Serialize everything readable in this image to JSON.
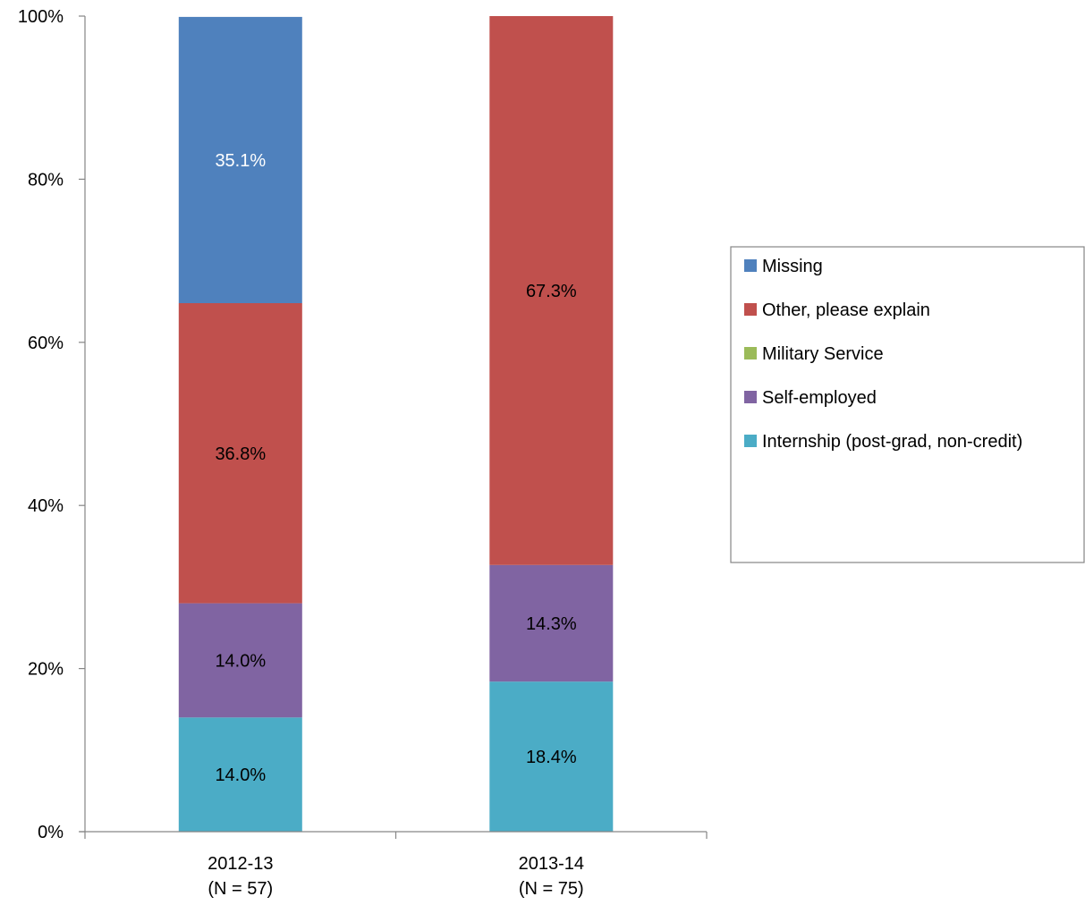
{
  "chart_data": {
    "type": "bar",
    "stacked": true,
    "percent_stacked": true,
    "categories": [
      "2012-13",
      "2013-14"
    ],
    "category_sublabels": [
      "(N = 57)",
      "(N = 75)"
    ],
    "ylim": [
      0,
      100
    ],
    "yticks": [
      0,
      20,
      40,
      60,
      80,
      100
    ],
    "ytick_labels": [
      "0%",
      "20%",
      "40%",
      "60%",
      "80%",
      "100%"
    ],
    "grid": false,
    "legend_position": "right",
    "series": [
      {
        "name": "Internship (post-grad, non-credit)",
        "color": "#4bacc6",
        "values": [
          14.0,
          18.4
        ],
        "labels": [
          "14.0%",
          "18.4%"
        ],
        "label_color": "#000000"
      },
      {
        "name": "Self-employed",
        "color": "#8064a2",
        "values": [
          14.0,
          14.3
        ],
        "labels": [
          "14.0%",
          "14.3%"
        ],
        "label_color": "#000000"
      },
      {
        "name": "Military Service",
        "color": "#9bbb59",
        "values": [
          0,
          0
        ],
        "labels": [
          "",
          ""
        ],
        "label_color": "#000000"
      },
      {
        "name": "Other, please explain",
        "color": "#c0504d",
        "values": [
          36.8,
          67.3
        ],
        "labels": [
          "36.8%",
          "67.3%"
        ],
        "label_color": "#000000"
      },
      {
        "name": "Missing",
        "color": "#4f81bd",
        "values": [
          35.1,
          0
        ],
        "labels": [
          "35.1%",
          ""
        ],
        "label_color": "#ffffff"
      }
    ],
    "legend_order": [
      "Missing",
      "Other, please explain",
      "Military Service",
      "Self-employed",
      "Internship (post-grad, non-credit)"
    ]
  }
}
